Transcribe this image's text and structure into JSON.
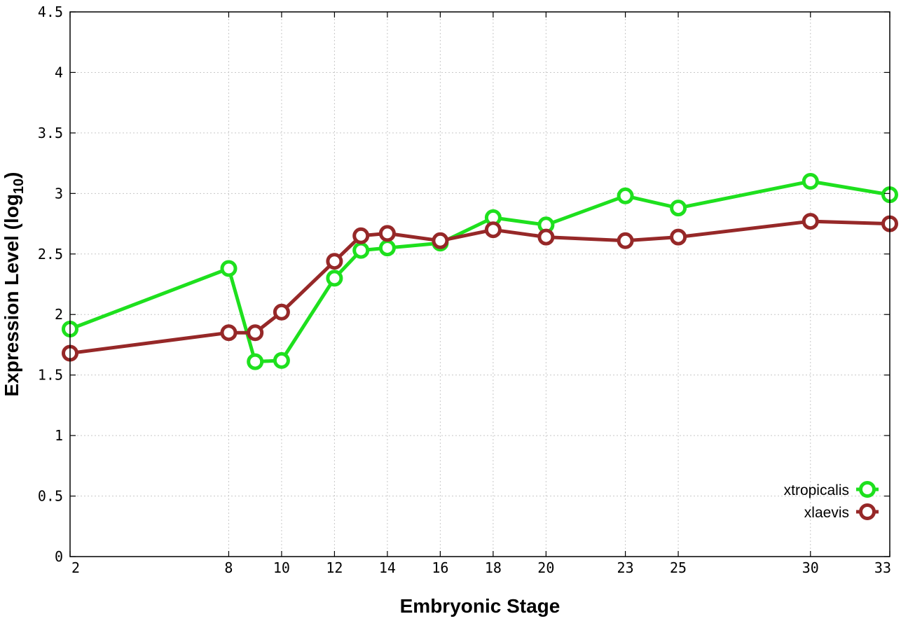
{
  "chart_data": {
    "type": "line",
    "xlabel": "Embryonic Stage",
    "ylabel": "Expression Level (log",
    "ylabel_subscript": "10",
    "ylabel_close": ")",
    "x": [
      2,
      8,
      9,
      10,
      12,
      13,
      14,
      16,
      18,
      20,
      23,
      25,
      30,
      33
    ],
    "xticks": [
      2,
      8,
      10,
      12,
      14,
      16,
      18,
      20,
      23,
      25,
      30,
      33
    ],
    "xlim": [
      2,
      33
    ],
    "ylim": [
      0,
      4.5
    ],
    "yticks": [
      "0",
      "0.5",
      "1",
      "1.5",
      "2",
      "2.5",
      "3",
      "3.5",
      "4",
      "4.5"
    ],
    "grid": true,
    "legend_position": "bottom-right",
    "series": [
      {
        "name": "xtropicalis",
        "color": "#1ee01e",
        "values": [
          1.88,
          2.38,
          1.61,
          1.62,
          2.3,
          2.53,
          2.55,
          2.59,
          2.8,
          2.74,
          2.98,
          2.88,
          3.1,
          2.99
        ]
      },
      {
        "name": "xlaevis",
        "color": "#962828",
        "values": [
          1.68,
          1.85,
          1.85,
          2.02,
          2.44,
          2.65,
          2.67,
          2.61,
          2.7,
          2.64,
          2.61,
          2.64,
          2.77,
          2.75
        ]
      }
    ]
  }
}
